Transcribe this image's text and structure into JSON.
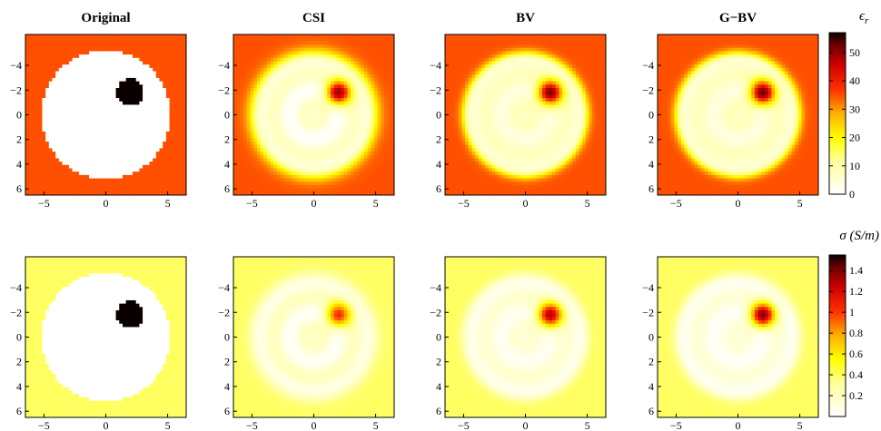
{
  "titles": [
    "Original",
    "CSI",
    "BV",
    "G−BV"
  ],
  "x_ticks": [
    "−5",
    "0",
    "5"
  ],
  "y_ticks": [
    "−4",
    "−2",
    "0",
    "2",
    "4",
    "6"
  ],
  "rows": [
    {
      "quantity": "permittivity",
      "colorbar_label": "ϵ",
      "colorbar_label_sub": "r",
      "colorbar_ticks": [
        "50",
        "40",
        "30",
        "20",
        "10",
        "0"
      ],
      "colorbar_range": [
        0,
        57
      ],
      "background_value": 35,
      "panels": [
        {
          "method": "Original",
          "disk": 0,
          "inclusion": 57,
          "blur": 0
        },
        {
          "method": "CSI",
          "disk": 4,
          "inclusion": 50,
          "blur": 1
        },
        {
          "method": "BV",
          "disk": 6,
          "inclusion": 52,
          "blur": 0.6
        },
        {
          "method": "G−BV",
          "disk": 6,
          "inclusion": 53,
          "blur": 0.6
        }
      ]
    },
    {
      "quantity": "conductivity",
      "colorbar_label": "σ (S/m)",
      "colorbar_ticks": [
        "1.4",
        "1.2",
        "1",
        "0.8",
        "0.6",
        "0.4",
        "0.2"
      ],
      "colorbar_range": [
        0,
        1.55
      ],
      "background_value": 0.4,
      "panels": [
        {
          "method": "Original",
          "disk": 0,
          "inclusion": 1.55,
          "blur": 0
        },
        {
          "method": "CSI",
          "disk": 0.12,
          "inclusion": 1.05,
          "blur": 1
        },
        {
          "method": "BV",
          "disk": 0.1,
          "inclusion": 1.3,
          "blur": 0.6
        },
        {
          "method": "G−BV",
          "disk": 0.08,
          "inclusion": 1.4,
          "blur": 0.6
        }
      ]
    }
  ],
  "colormap": "hot-reversed"
}
